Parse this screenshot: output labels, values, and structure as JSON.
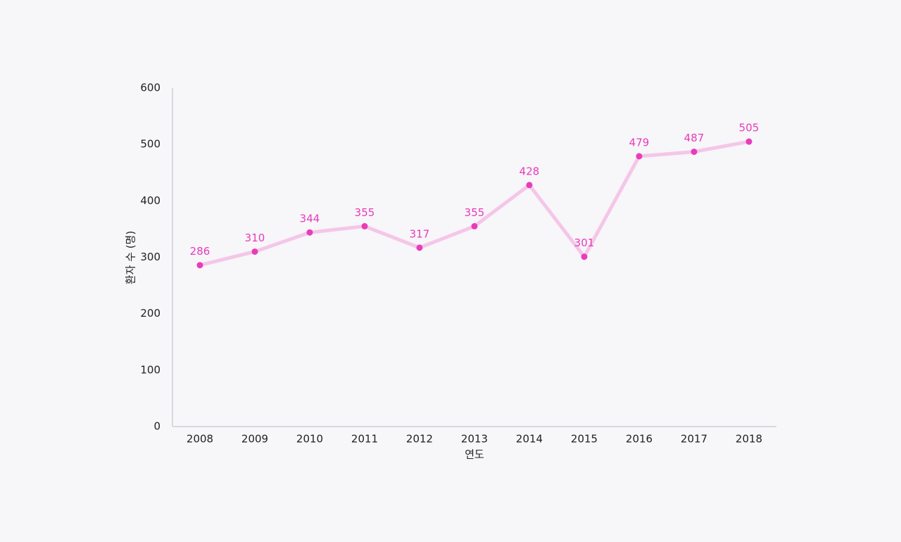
{
  "chart_data": {
    "type": "line",
    "x_label": "연도",
    "y_label": "환자 수 (명)",
    "categories": [
      "2008",
      "2009",
      "2010",
      "2011",
      "2012",
      "2013",
      "2014",
      "2015",
      "2016",
      "2017",
      "2018"
    ],
    "values": [
      286,
      310,
      344,
      355,
      317,
      355,
      428,
      301,
      479,
      487,
      505
    ],
    "color": "#e83cba",
    "line_color": "#f5c6e8",
    "ylim": [
      0,
      600
    ],
    "yticks": [
      0,
      100,
      200,
      300,
      400,
      500,
      600
    ],
    "grid": false,
    "data_labels": true
  }
}
